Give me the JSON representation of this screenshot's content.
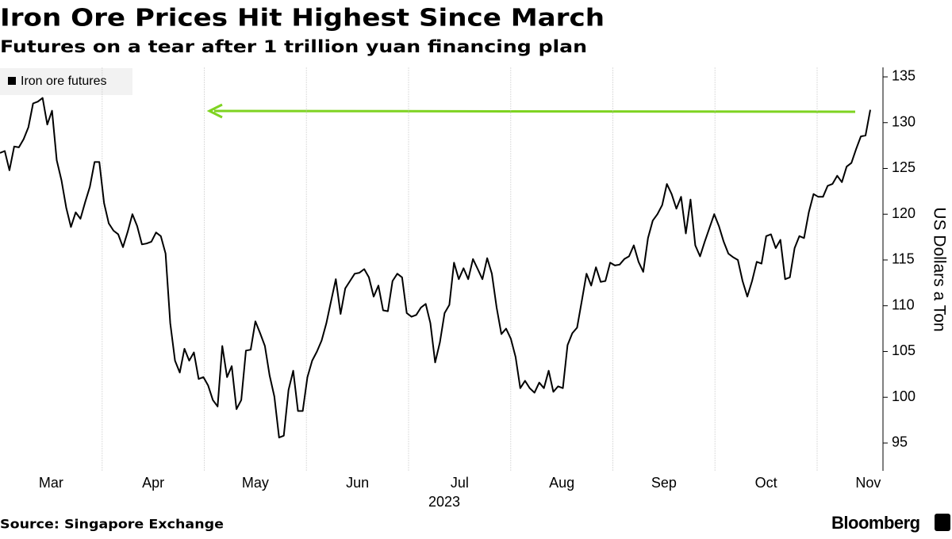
{
  "chart_data": {
    "type": "line",
    "title": "Iron Ore Prices Hit Highest Since March",
    "subtitle": "Futures on a tear after 1 trillion yuan financing plan",
    "source": "Source: Singapore Exchange",
    "brand": "Bloomberg",
    "ylabel": "US Dollars a Ton",
    "x_labels": [
      "Mar",
      "Apr",
      "May",
      "Jun",
      "Jul",
      "Aug",
      "Sep",
      "Oct",
      "Nov"
    ],
    "x_sublabel": "2023",
    "ylim": [
      92,
      136
    ],
    "yticks": [
      95,
      100,
      105,
      110,
      115,
      120,
      125,
      130,
      135
    ],
    "grid": false,
    "legend": "top-left",
    "series": [
      {
        "name": "Iron ore futures",
        "color": "#000000",
        "values": [
          126.7,
          126.9,
          124.8,
          127.4,
          127.3,
          128.2,
          129.5,
          132.1,
          132.3,
          132.7,
          129.8,
          131.3,
          125.9,
          123.7,
          120.7,
          118.6,
          120.2,
          119.5,
          121.3,
          123.0,
          125.7,
          125.7,
          121.2,
          119.0,
          118.2,
          117.8,
          116.4,
          118.1,
          120.0,
          118.7,
          116.7,
          116.8,
          117.0,
          118.0,
          117.6,
          115.7,
          108.1,
          104.0,
          102.7,
          105.3,
          104.0,
          104.9,
          102.0,
          102.2,
          101.3,
          99.7,
          99.0,
          105.6,
          102.2,
          103.4,
          98.7,
          99.7,
          105.1,
          105.2,
          108.3,
          107.0,
          105.6,
          102.4,
          100.1,
          95.6,
          95.8,
          100.8,
          102.9,
          98.5,
          98.5,
          102.2,
          104.0,
          105.0,
          106.2,
          108.1,
          110.5,
          112.9,
          109.1,
          111.9,
          112.7,
          113.5,
          113.6,
          114.0,
          113.1,
          111.0,
          112.2,
          109.5,
          109.4,
          112.7,
          113.5,
          113.1,
          109.2,
          108.8,
          109.0,
          109.8,
          110.2,
          108.1,
          103.8,
          106.0,
          109.2,
          110.1,
          114.7,
          112.9,
          114.1,
          112.9,
          115.1,
          114.0,
          112.9,
          115.2,
          113.5,
          109.8,
          106.9,
          107.5,
          106.4,
          104.4,
          101.0,
          101.8,
          101.0,
          100.5,
          101.6,
          101.0,
          102.9,
          100.6,
          101.2,
          101.0,
          105.7,
          107.0,
          107.6,
          110.5,
          113.5,
          112.2,
          114.2,
          112.6,
          112.7,
          114.7,
          114.4,
          114.5,
          115.1,
          115.4,
          116.6,
          114.8,
          113.7,
          117.4,
          119.3,
          120.0,
          121.0,
          123.3,
          122.2,
          120.6,
          121.9,
          117.9,
          121.6,
          116.6,
          115.4,
          117.0,
          118.5,
          120.0,
          118.7,
          117.0,
          115.7,
          115.3,
          115.0,
          112.7,
          111.0,
          112.7,
          114.8,
          114.6,
          117.6,
          117.8,
          116.3,
          117.2,
          112.9,
          113.1,
          116.3,
          117.6,
          117.4,
          120.2,
          122.2,
          121.9,
          121.9,
          123.1,
          123.3,
          124.2,
          123.5,
          125.2,
          125.6,
          127.1,
          128.5,
          128.6,
          131.4
        ]
      }
    ]
  }
}
